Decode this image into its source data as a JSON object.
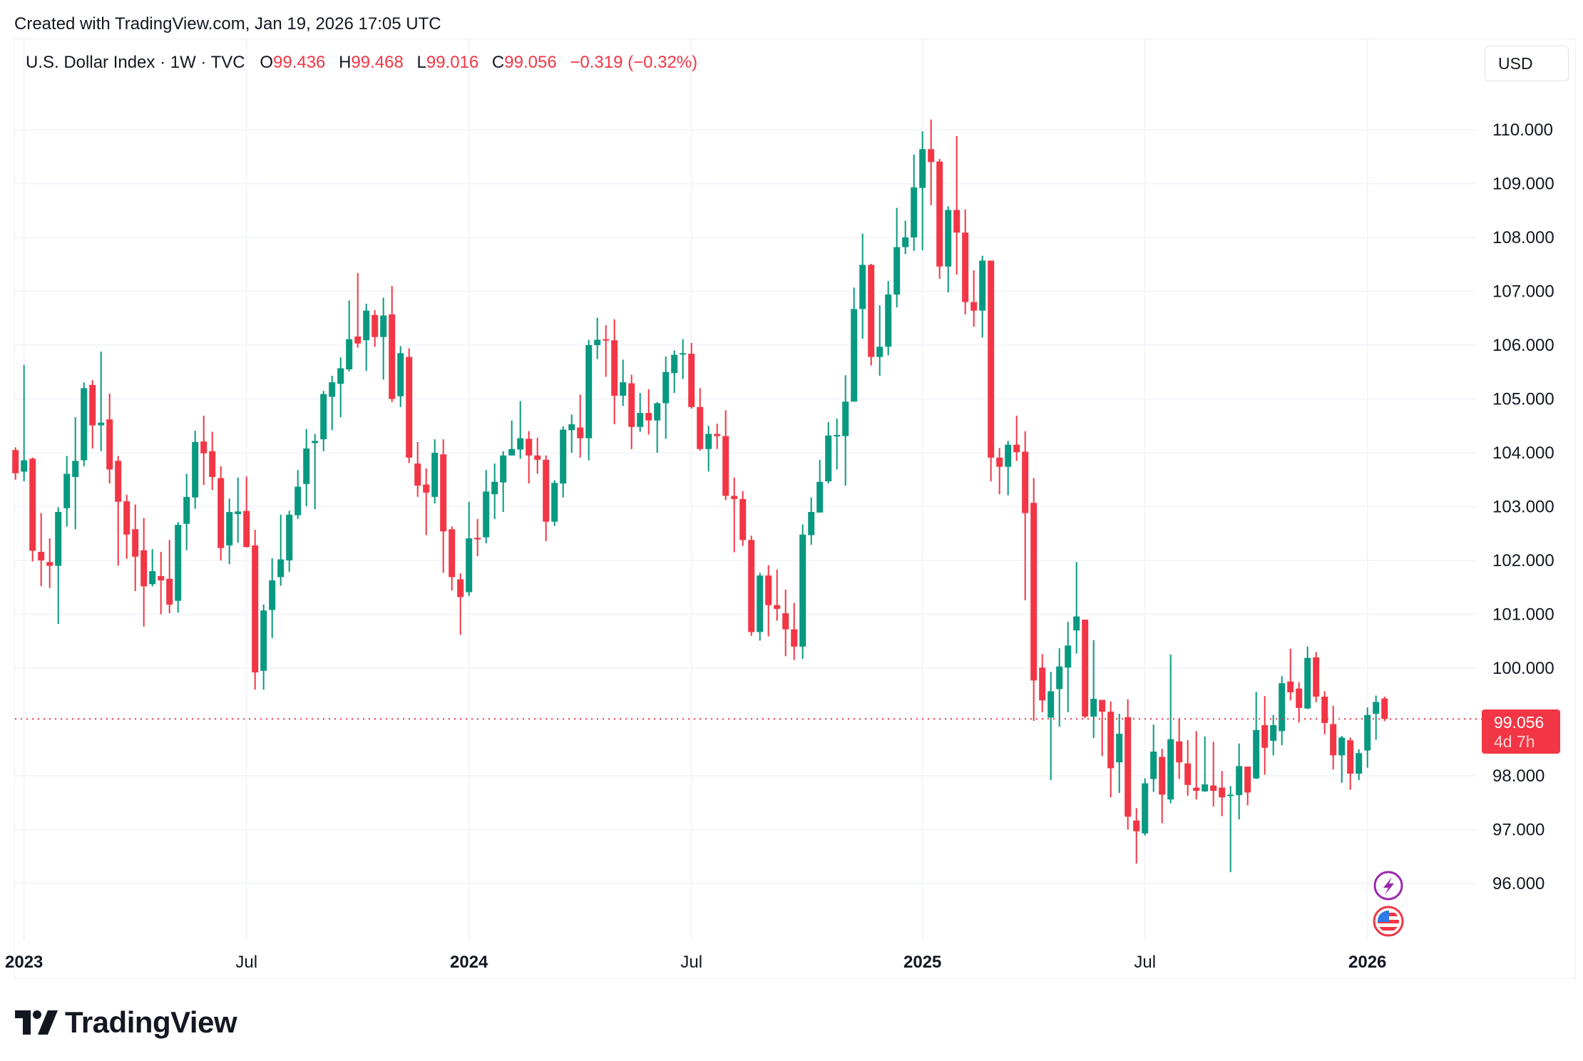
{
  "created": "Created with TradingView.com, Jan 19, 2026 17:05 UTC",
  "legend": {
    "title": "U.S. Dollar Index · 1W · TVC",
    "o_label": "O",
    "o": "99.436",
    "h_label": "H",
    "h": "99.468",
    "l_label": "L",
    "l": "99.016",
    "c_label": "C",
    "c": "99.056",
    "change": "−0.319 (−0.32%)"
  },
  "currency": "USD",
  "price_tag": {
    "price": "99.056",
    "countdown": "4d 7h"
  },
  "logo_text": "TradingView",
  "icons": [
    "lightning-event-icon",
    "us-flag-icon"
  ],
  "colors": {
    "up": "#089981",
    "down": "#F23645",
    "grid": "#f0f3fa",
    "text": "#131722",
    "event": "#9c27b0"
  },
  "chart_data": {
    "type": "candlestick",
    "symbol": "U.S. Dollar Index",
    "interval": "1W",
    "ylim": [
      95,
      110.5
    ],
    "grid": true,
    "last_price": 99.056,
    "y_ticks": [
      "110.000",
      "109.000",
      "108.000",
      "107.000",
      "106.000",
      "105.000",
      "104.000",
      "103.000",
      "102.000",
      "101.000",
      "100.000",
      "98.000",
      "97.000",
      "96.000"
    ],
    "x_ticks": [
      {
        "label": "2023",
        "date": "2023-01-02",
        "bold": true
      },
      {
        "label": "Jul",
        "date": "2023-07-03",
        "bold": false
      },
      {
        "label": "2024",
        "date": "2024-01-01",
        "bold": true
      },
      {
        "label": "Jul",
        "date": "2024-07-01",
        "bold": false
      },
      {
        "label": "2025",
        "date": "2025-01-06",
        "bold": true
      },
      {
        "label": "Jul",
        "date": "2025-07-07",
        "bold": false
      },
      {
        "label": "2026",
        "date": "2026-01-05",
        "bold": true
      }
    ],
    "columns": [
      "week",
      "open",
      "high",
      "low",
      "close"
    ],
    "candles": [
      [
        "2022-12-26",
        104.05,
        104.1,
        103.5,
        103.62
      ],
      [
        "2023-01-02",
        103.65,
        105.63,
        103.47,
        103.86
      ],
      [
        "2023-01-09",
        103.89,
        103.91,
        101.98,
        102.18
      ],
      [
        "2023-01-16",
        102.16,
        102.88,
        101.52,
        102.0
      ],
      [
        "2023-01-23",
        101.97,
        102.41,
        101.49,
        101.9
      ],
      [
        "2023-01-30",
        101.9,
        102.99,
        100.82,
        102.9
      ],
      [
        "2023-02-06",
        102.97,
        103.94,
        102.63,
        103.61
      ],
      [
        "2023-02-13",
        103.55,
        104.66,
        102.58,
        103.85
      ],
      [
        "2023-02-20",
        103.86,
        105.31,
        103.75,
        105.2
      ],
      [
        "2023-02-27",
        105.26,
        105.35,
        104.08,
        104.51
      ],
      [
        "2023-03-06",
        104.51,
        105.88,
        104.03,
        104.56
      ],
      [
        "2023-03-13",
        104.62,
        105.1,
        103.43,
        103.69
      ],
      [
        "2023-03-20",
        103.85,
        103.94,
        101.9,
        103.09
      ],
      [
        "2023-03-27",
        103.1,
        103.22,
        102.03,
        102.48
      ],
      [
        "2023-04-03",
        102.58,
        103.04,
        101.43,
        102.07
      ],
      [
        "2023-04-10",
        102.19,
        102.79,
        100.77,
        101.52
      ],
      [
        "2023-04-17",
        101.56,
        102.21,
        101.52,
        101.8
      ],
      [
        "2023-04-24",
        101.71,
        102.16,
        101.0,
        101.63
      ],
      [
        "2023-05-01",
        101.66,
        102.38,
        101.02,
        101.18
      ],
      [
        "2023-05-08",
        101.25,
        102.71,
        101.03,
        102.66
      ],
      [
        "2023-05-15",
        102.68,
        103.61,
        102.19,
        103.18
      ],
      [
        "2023-05-22",
        103.17,
        104.41,
        102.96,
        104.2
      ],
      [
        "2023-05-29",
        104.21,
        104.69,
        103.4,
        103.99
      ],
      [
        "2023-06-05",
        104.03,
        104.39,
        103.31,
        103.55
      ],
      [
        "2023-06-12",
        103.53,
        103.75,
        102.0,
        102.23
      ],
      [
        "2023-06-19",
        102.28,
        103.15,
        101.93,
        102.9
      ],
      [
        "2023-06-26",
        102.86,
        103.54,
        102.33,
        102.91
      ],
      [
        "2023-07-03",
        102.92,
        103.56,
        102.24,
        102.25
      ],
      [
        "2023-07-10",
        102.28,
        102.57,
        99.6,
        99.92
      ],
      [
        "2023-07-17",
        99.95,
        101.18,
        99.6,
        101.07
      ],
      [
        "2023-07-24",
        101.08,
        102.04,
        100.56,
        101.63
      ],
      [
        "2023-07-31",
        101.69,
        102.85,
        101.53,
        102.02
      ],
      [
        "2023-08-07",
        102.0,
        102.92,
        101.79,
        102.85
      ],
      [
        "2023-08-14",
        102.84,
        103.68,
        102.77,
        103.37
      ],
      [
        "2023-08-21",
        103.42,
        104.44,
        103.01,
        104.08
      ],
      [
        "2023-08-28",
        104.18,
        104.35,
        102.95,
        104.22
      ],
      [
        "2023-09-04",
        104.25,
        105.15,
        104.03,
        105.09
      ],
      [
        "2023-09-11",
        105.04,
        105.43,
        104.42,
        105.31
      ],
      [
        "2023-09-18",
        105.28,
        105.77,
        104.66,
        105.57
      ],
      [
        "2023-09-25",
        105.55,
        106.83,
        105.51,
        106.11
      ],
      [
        "2023-10-02",
        106.16,
        107.34,
        105.95,
        106.03
      ],
      [
        "2023-10-09",
        106.09,
        106.77,
        105.52,
        106.64
      ],
      [
        "2023-10-16",
        106.56,
        106.65,
        105.97,
        106.15
      ],
      [
        "2023-10-23",
        106.15,
        106.88,
        105.36,
        106.55
      ],
      [
        "2023-10-30",
        106.57,
        107.1,
        104.94,
        105.0
      ],
      [
        "2023-11-06",
        105.05,
        105.98,
        104.85,
        105.85
      ],
      [
        "2023-11-13",
        105.78,
        105.94,
        103.81,
        103.91
      ],
      [
        "2023-11-20",
        103.8,
        104.2,
        103.18,
        103.39
      ],
      [
        "2023-11-27",
        103.41,
        103.71,
        102.47,
        103.26
      ],
      [
        "2023-12-04",
        103.18,
        104.25,
        103.06,
        104.0
      ],
      [
        "2023-12-11",
        103.97,
        104.25,
        101.77,
        102.54
      ],
      [
        "2023-12-18",
        102.58,
        102.63,
        101.44,
        101.69
      ],
      [
        "2023-12-25",
        101.65,
        101.76,
        100.62,
        101.32
      ],
      [
        "2024-01-01",
        101.41,
        103.09,
        101.34,
        102.41
      ],
      [
        "2024-01-08",
        102.42,
        102.77,
        102.08,
        102.39
      ],
      [
        "2024-01-15",
        102.43,
        103.68,
        102.32,
        103.28
      ],
      [
        "2024-01-22",
        103.23,
        103.8,
        102.77,
        103.46
      ],
      [
        "2024-01-29",
        103.45,
        104.03,
        102.9,
        103.95
      ],
      [
        "2024-02-05",
        103.95,
        104.6,
        103.95,
        104.07
      ],
      [
        "2024-02-12",
        104.06,
        104.96,
        103.89,
        104.27
      ],
      [
        "2024-02-19",
        104.26,
        104.4,
        103.43,
        103.95
      ],
      [
        "2024-02-26",
        103.95,
        104.28,
        103.61,
        103.87
      ],
      [
        "2024-03-04",
        103.87,
        103.95,
        102.36,
        102.72
      ],
      [
        "2024-03-11",
        102.72,
        103.49,
        102.64,
        103.44
      ],
      [
        "2024-03-18",
        103.43,
        104.49,
        103.17,
        104.43
      ],
      [
        "2024-03-25",
        104.42,
        104.71,
        104.0,
        104.53
      ],
      [
        "2024-04-01",
        104.47,
        105.08,
        103.91,
        104.27
      ],
      [
        "2024-04-08",
        104.27,
        106.1,
        103.86,
        106.0
      ],
      [
        "2024-04-15",
        106.0,
        106.51,
        105.74,
        106.1
      ],
      [
        "2024-04-22",
        106.11,
        106.37,
        105.41,
        106.1
      ],
      [
        "2024-04-29",
        106.09,
        106.48,
        104.53,
        105.06
      ],
      [
        "2024-05-06",
        105.06,
        105.73,
        104.87,
        105.31
      ],
      [
        "2024-05-13",
        105.29,
        105.45,
        104.07,
        104.48
      ],
      [
        "2024-05-20",
        104.48,
        105.11,
        104.39,
        104.74
      ],
      [
        "2024-05-27",
        104.74,
        105.18,
        104.34,
        104.6
      ],
      [
        "2024-06-03",
        104.6,
        104.94,
        104.0,
        104.92
      ],
      [
        "2024-06-10",
        104.92,
        105.79,
        104.26,
        105.5
      ],
      [
        "2024-06-17",
        105.48,
        105.9,
        105.11,
        105.82
      ],
      [
        "2024-06-24",
        105.84,
        106.11,
        105.37,
        105.85
      ],
      [
        "2024-07-01",
        105.84,
        106.04,
        104.82,
        104.85
      ],
      [
        "2024-07-08",
        104.85,
        105.2,
        104.04,
        104.07
      ],
      [
        "2024-07-15",
        104.07,
        104.5,
        103.65,
        104.35
      ],
      [
        "2024-07-22",
        104.35,
        104.54,
        104.07,
        104.31
      ],
      [
        "2024-07-29",
        104.31,
        104.79,
        103.12,
        103.2
      ],
      [
        "2024-08-05",
        103.2,
        103.54,
        102.15,
        103.14
      ],
      [
        "2024-08-12",
        103.14,
        103.29,
        102.27,
        102.38
      ],
      [
        "2024-08-19",
        102.38,
        102.46,
        100.6,
        100.67
      ],
      [
        "2024-08-26",
        100.67,
        101.77,
        100.51,
        101.72
      ],
      [
        "2024-09-02",
        101.72,
        101.91,
        100.59,
        101.17
      ],
      [
        "2024-09-09",
        101.17,
        101.83,
        100.88,
        101.1
      ],
      [
        "2024-09-16",
        101.02,
        101.46,
        100.22,
        100.72
      ],
      [
        "2024-09-23",
        100.72,
        101.21,
        100.15,
        100.4
      ],
      [
        "2024-09-30",
        100.4,
        102.67,
        100.17,
        102.48
      ],
      [
        "2024-10-07",
        102.47,
        103.17,
        102.29,
        102.9
      ],
      [
        "2024-10-14",
        102.89,
        103.87,
        102.89,
        103.46
      ],
      [
        "2024-10-21",
        103.47,
        104.57,
        103.43,
        104.32
      ],
      [
        "2024-10-28",
        104.31,
        104.63,
        103.69,
        104.33
      ],
      [
        "2024-11-04",
        104.31,
        105.44,
        103.39,
        104.95
      ],
      [
        "2024-11-11",
        104.95,
        107.07,
        104.95,
        106.67
      ],
      [
        "2024-11-18",
        106.67,
        108.07,
        106.12,
        107.49
      ],
      [
        "2024-11-25",
        107.49,
        107.51,
        105.62,
        105.78
      ],
      [
        "2024-12-02",
        105.78,
        106.74,
        105.43,
        105.97
      ],
      [
        "2024-12-09",
        105.97,
        107.19,
        105.81,
        106.94
      ],
      [
        "2024-12-16",
        106.94,
        108.55,
        106.7,
        107.82
      ],
      [
        "2024-12-23",
        107.82,
        108.31,
        107.69,
        108.0
      ],
      [
        "2024-12-30",
        108.0,
        109.54,
        107.75,
        108.93
      ],
      [
        "2025-01-06",
        108.92,
        109.97,
        107.76,
        109.64
      ],
      [
        "2025-01-13",
        109.64,
        110.19,
        108.6,
        109.4
      ],
      [
        "2025-01-20",
        109.41,
        109.46,
        107.23,
        107.46
      ],
      [
        "2025-01-27",
        107.46,
        108.58,
        106.98,
        108.51
      ],
      [
        "2025-02-03",
        108.51,
        109.88,
        107.31,
        108.09
      ],
      [
        "2025-02-10",
        108.09,
        108.52,
        106.57,
        106.8
      ],
      [
        "2025-02-17",
        106.8,
        107.39,
        106.34,
        106.64
      ],
      [
        "2025-02-24",
        106.64,
        107.66,
        106.14,
        107.57
      ],
      [
        "2025-03-03",
        107.57,
        107.57,
        103.47,
        103.91
      ],
      [
        "2025-03-10",
        103.91,
        104.09,
        103.23,
        103.74
      ],
      [
        "2025-03-17",
        103.74,
        104.22,
        103.21,
        104.15
      ],
      [
        "2025-03-24",
        104.15,
        104.69,
        103.85,
        104.01
      ],
      [
        "2025-03-31",
        104.02,
        104.4,
        101.26,
        102.88
      ],
      [
        "2025-04-07",
        103.07,
        103.53,
        99.02,
        99.77
      ],
      [
        "2025-04-14",
        100.01,
        100.26,
        99.18,
        99.4
      ],
      [
        "2025-04-21",
        99.08,
        99.93,
        97.92,
        99.57
      ],
      [
        "2025-04-28",
        99.61,
        100.37,
        98.91,
        100.03
      ],
      [
        "2025-05-05",
        100.01,
        100.86,
        99.18,
        100.42
      ],
      [
        "2025-05-12",
        100.7,
        101.97,
        100.27,
        100.96
      ],
      [
        "2025-05-19",
        100.9,
        100.9,
        99.07,
        99.1
      ],
      [
        "2025-05-26",
        99.1,
        100.52,
        98.7,
        99.43
      ],
      [
        "2025-06-02",
        99.41,
        99.41,
        98.37,
        99.19
      ],
      [
        "2025-06-09",
        99.19,
        99.38,
        97.6,
        98.14
      ],
      [
        "2025-06-16",
        98.25,
        99.15,
        97.68,
        98.78
      ],
      [
        "2025-06-23",
        99.09,
        99.42,
        97.0,
        97.24
      ],
      [
        "2025-06-30",
        97.17,
        97.4,
        96.37,
        96.97
      ],
      [
        "2025-07-07",
        96.93,
        97.95,
        96.89,
        97.86
      ],
      [
        "2025-07-14",
        97.94,
        98.95,
        97.7,
        98.45
      ],
      [
        "2025-07-21",
        98.35,
        98.5,
        97.12,
        97.65
      ],
      [
        "2025-07-28",
        97.56,
        100.25,
        97.49,
        98.68
      ],
      [
        "2025-08-04",
        98.64,
        99.07,
        97.94,
        98.25
      ],
      [
        "2025-08-11",
        98.23,
        98.66,
        97.63,
        97.83
      ],
      [
        "2025-08-18",
        97.78,
        98.83,
        97.56,
        97.72
      ],
      [
        "2025-08-25",
        97.71,
        98.73,
        97.7,
        97.84
      ],
      [
        "2025-09-01",
        97.82,
        98.63,
        97.43,
        97.72
      ],
      [
        "2025-09-08",
        97.78,
        98.09,
        97.25,
        97.6
      ],
      [
        "2025-09-15",
        97.63,
        97.81,
        96.21,
        97.65
      ],
      [
        "2025-09-22",
        97.64,
        98.6,
        97.19,
        98.18
      ],
      [
        "2025-09-29",
        98.17,
        98.17,
        97.45,
        97.69
      ],
      [
        "2025-10-06",
        97.95,
        99.56,
        97.94,
        98.85
      ],
      [
        "2025-10-13",
        98.94,
        99.48,
        98.02,
        98.52
      ],
      [
        "2025-10-20",
        98.65,
        99.13,
        98.38,
        98.94
      ],
      [
        "2025-10-27",
        98.83,
        99.85,
        98.57,
        99.72
      ],
      [
        "2025-11-03",
        99.75,
        100.36,
        99.4,
        99.55
      ],
      [
        "2025-11-10",
        99.62,
        99.74,
        98.99,
        99.26
      ],
      [
        "2025-11-17",
        99.25,
        100.4,
        99.24,
        100.19
      ],
      [
        "2025-11-24",
        100.2,
        100.3,
        99.37,
        99.47
      ],
      [
        "2025-12-01",
        99.47,
        99.57,
        98.77,
        98.98
      ],
      [
        "2025-12-08",
        98.96,
        99.3,
        98.12,
        98.38
      ],
      [
        "2025-12-15",
        98.38,
        98.74,
        97.87,
        98.71
      ],
      [
        "2025-12-22",
        98.66,
        98.71,
        97.74,
        98.04
      ],
      [
        "2025-12-29",
        98.04,
        98.49,
        97.92,
        98.42
      ],
      [
        "2026-01-05",
        98.47,
        99.27,
        98.15,
        99.13
      ],
      [
        "2026-01-12",
        99.15,
        99.49,
        98.67,
        99.37
      ],
      [
        "2026-01-19",
        99.436,
        99.468,
        99.016,
        99.056
      ]
    ]
  }
}
